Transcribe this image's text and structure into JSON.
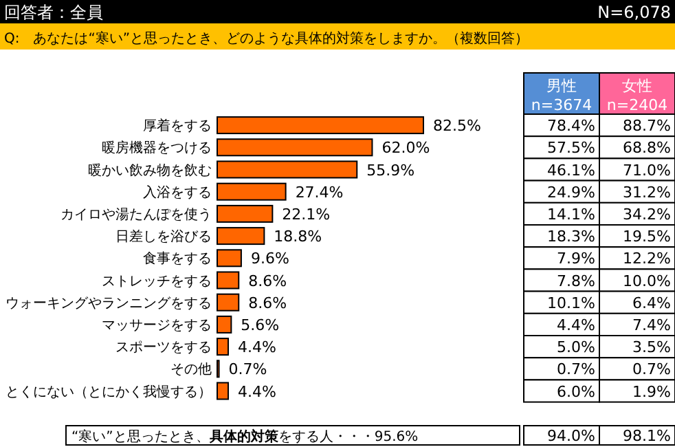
{
  "chart_data": [
    {
      "type": "bar",
      "orientation": "horizontal",
      "color": "#ff6600",
      "value_labels": [
        "82.5%",
        "62.0%",
        "55.9%",
        "27.4%",
        "22.1%",
        "18.8%",
        "9.6%",
        "8.6%",
        "8.6%",
        "5.6%",
        "4.4%",
        "0.7%",
        "4.4%"
      ],
      "title": "回答者：全員",
      "subtitle": "Q:　あなたは“寒い”と思ったとき、どのような具体的対策をしますか。（複数回答）",
      "annotations": [
        "N=6,078",
        "“寒い”と思ったとき、**具体的対策**をする人・・・95.6%"
      ],
      "categories": [
        "厚着をする",
        "暖房機器をつける",
        "暖かい飲み物を飲む",
        "入浴をする",
        "カイロや湯たんぽを使う",
        "日差しを浴びる",
        "食事をする",
        "ストレッチをする",
        "ウォーキングやランニングをする",
        "マッサージをする",
        "スポーツをする",
        "その他",
        "とくにない（とにかく我慢する）"
      ],
      "values": [
        82.5,
        62.0,
        55.9,
        27.4,
        22.1,
        18.8,
        9.6,
        8.6,
        8.6,
        5.6,
        4.4,
        0.7,
        4.4
      ]
    },
    {
      "type": "other",
      "categories": [
        "男性 n=3674",
        "女性 n=2404"
      ],
      "annotations": [
        "78.4%",
        "57.5%",
        "46.1%",
        "24.9%",
        "14.1%",
        "18.3%",
        "7.9%",
        "7.8%",
        "10.1%",
        "4.4%",
        "5.0%",
        "0.7%",
        "6.0%",
        "94.0%",
        "88.7%",
        "68.8%",
        "71.0%",
        "31.2%",
        "34.2%",
        "19.5%",
        "12.2%",
        "10.0%",
        "6.4%",
        "7.4%",
        "3.5%",
        "0.7%",
        "1.9%",
        "98.1%"
      ]
    }
  ]
}
